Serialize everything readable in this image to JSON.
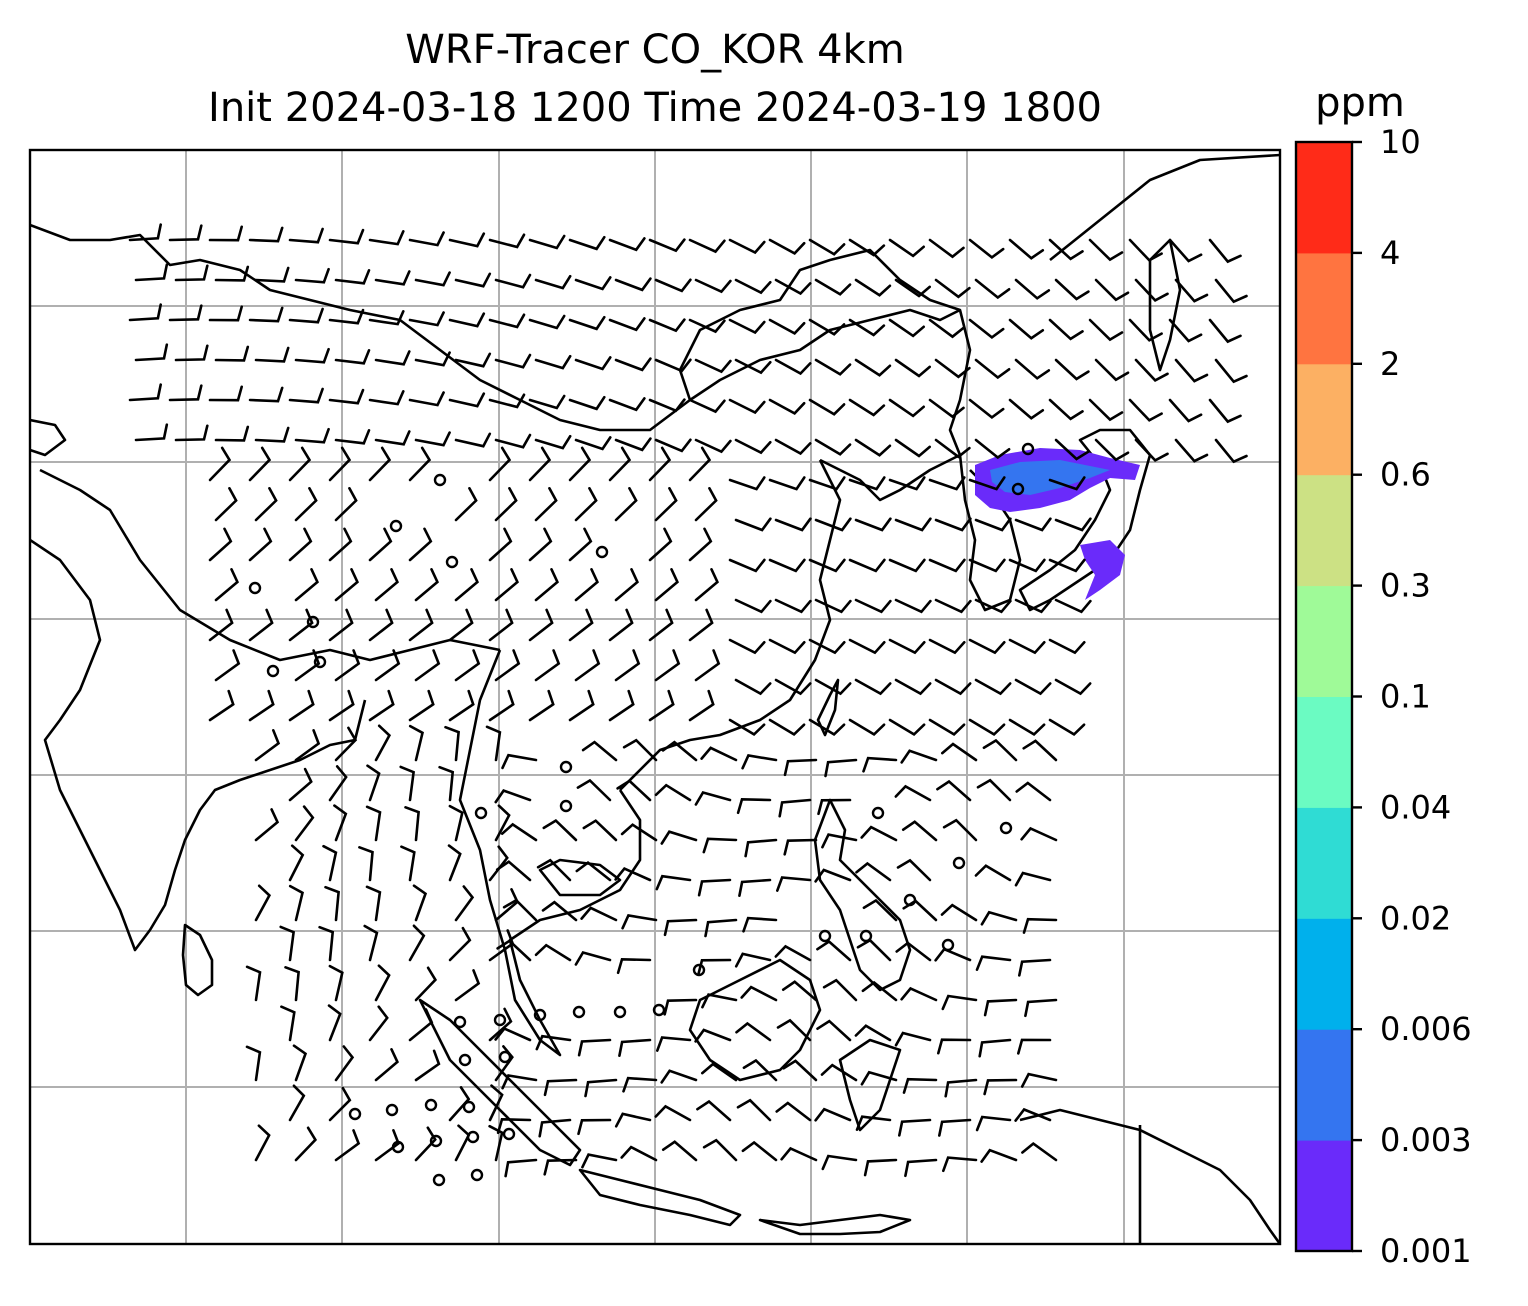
{
  "title": {
    "line1": "WRF-Tracer CO_KOR 4km",
    "line2": "Init 2024-03-18 1200 Time 2024-03-19 1800"
  },
  "colorbar": {
    "unit": "ppm",
    "levels": [
      "0.001",
      "0.003",
      "0.006",
      "0.02",
      "0.04",
      "0.1",
      "0.3",
      "0.6",
      "2",
      "4",
      "10"
    ],
    "colors": [
      "#6a2bfa",
      "#3475f0",
      "#00b0ec",
      "#2fdcd4",
      "#6bfbc2",
      "#9ffa98",
      "#cce184",
      "#fcb063",
      "#ff7440",
      "#ff2b18"
    ]
  },
  "map": {
    "gridlines": true,
    "gridline_color": "#b0b0b0",
    "coastline_color": "#000000",
    "barb_color": "#000000",
    "features": [
      "coastlines",
      "country-borders",
      "wind-barbs",
      "tracer-plume-korea"
    ]
  }
}
